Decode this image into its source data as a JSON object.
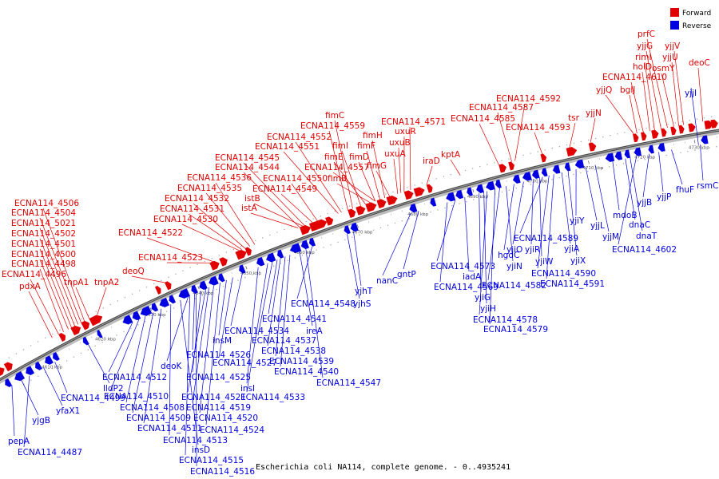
{
  "legend": {
    "forward_label": "Forward",
    "reverse_label": "Reverse",
    "forward_color": "#e00000",
    "reverse_color": "#0000e0"
  },
  "caption": "Escherichia coli NA114, complete genome. - 0..4935241",
  "axis_ticks": [
    "4610 kbp",
    "4620 kbp",
    "4630 kbp",
    "4640 kbp",
    "4650 kbp",
    "4660 kbp",
    "4670 kbp",
    "4680 kbp",
    "4690 kbp",
    "4700 kbp",
    "4710 kbp",
    "4720 kbp",
    "4730 kbp"
  ],
  "forward_genes": [
    "pdxA",
    "ECNA114_4496",
    "ECNA114_4498",
    "ECNA114_4500",
    "ECNA114_4501",
    "ECNA114_4502",
    "ECNA114_5021",
    "ECNA114_4504",
    "ECNA114_4506",
    "tnpA1",
    "tnpA2",
    "deoQ",
    "ECNA114_4523",
    "ECNA114_4522",
    "ECNA114_4530",
    "ECNA114_4531",
    "ECNA114_4532",
    "ECNA114_4535",
    "ECNA114_4536",
    "ECNA114_4544",
    "ECNA114_4545",
    "istA",
    "istB",
    "ECNA114_4549",
    "ECNA114_4550",
    "ECNA114_4551",
    "ECNA114_4552",
    "ECNA114_4559",
    "fimC",
    "fimI",
    "fimE",
    "fimB",
    "ECNA114_4557",
    "fimD",
    "fimF",
    "fimH",
    "fimG",
    "uxuA",
    "uxuB",
    "uxuR",
    "ECNA114_4571",
    "iraD",
    "kptA",
    "ECNA114_4585",
    "ECNA114_4587",
    "ECNA114_4592",
    "ECNA114_4593",
    "tsr",
    "yjjN",
    "yjjQ",
    "bglJ",
    "ECNA114_4610",
    "holD",
    "rimI",
    "yjjG",
    "prfC",
    "osmY",
    "yjjU",
    "yjjV",
    "deoC"
  ],
  "reverse_genes": [
    "yjgB",
    "pepA",
    "ECNA114_4487",
    "yfaX1",
    "ECNA114_4499",
    "lldP2",
    "ECNA114_4512",
    "ECNA114_4510",
    "ECNA114_4508",
    "ECNA114_4509",
    "ECNA114_4511",
    "ECNA114_4513",
    "insD",
    "ECNA114_4515",
    "ECNA114_4516",
    "deoK",
    "ECNA114_4526",
    "ECNA114_4525",
    "ECNA114_4521",
    "ECNA114_4519",
    "ECNA114_4520",
    "ECNA114_4524",
    "insM",
    "ECNA114_4527",
    "ECNA114_4534",
    "insI",
    "ECNA114_4533",
    "ECNA114_4537",
    "ECNA114_4541",
    "ECNA114_4538",
    "ECNA114_4539",
    "ECNA114_4540",
    "ireA",
    "ECNA114_4547",
    "ECNA114_4548",
    "yjhS",
    "yjhT",
    "nanC",
    "gntP",
    "ECNA114_4569",
    "ECNA114_4573",
    "iadA",
    "yjiG",
    "yjiH",
    "ECNA114_4578",
    "ECNA114_4579",
    "ECNA114_4582",
    "yjiN",
    "hgdC",
    "yjiO",
    "yjiR",
    "yjiW",
    "ECNA114_4589",
    "ECNA114_4590",
    "ECNA114_4591",
    "yjiA",
    "yjiX",
    "yjiY",
    "yjjL",
    "yjjM",
    "mdoB",
    "dnaC",
    "dnaT",
    "ECNA114_4602",
    "yjjB",
    "yjjP",
    "fhuF",
    "rsmC",
    "yjjI"
  ]
}
